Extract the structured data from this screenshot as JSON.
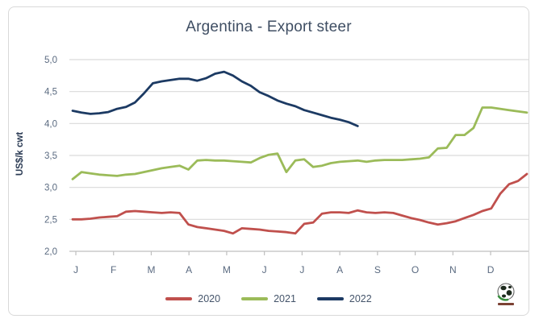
{
  "window": {
    "background": "#ffffff",
    "frame_border_color": "#d9d9d9"
  },
  "chart_data": {
    "type": "line",
    "title": "Argentina - Export steer",
    "xlabel": "",
    "ylabel": "US$/k cwt",
    "ylim": [
      2.0,
      5.0
    ],
    "ytick_step": 0.5,
    "ytick_labels": [
      "2,0",
      "2,5",
      "3,0",
      "3,5",
      "4,0",
      "4,5",
      "5,0"
    ],
    "categories": [
      "J",
      "F",
      "M",
      "A",
      "M",
      "J",
      "J",
      "A",
      "S",
      "O",
      "N",
      "D"
    ],
    "x_unit": "week",
    "weeks_per_year": 52,
    "grid": true,
    "legend_position": "bottom",
    "gridline_color": "#d9d9d9",
    "axis_line_color": "#bfbfbf",
    "tick_label_color": "#5a6a80",
    "series": [
      {
        "name": "2020",
        "color": "#c0504d",
        "values": [
          2.5,
          2.5,
          2.51,
          2.53,
          2.54,
          2.55,
          2.62,
          2.63,
          2.62,
          2.61,
          2.6,
          2.61,
          2.6,
          2.42,
          2.38,
          2.36,
          2.34,
          2.32,
          2.28,
          2.36,
          2.35,
          2.34,
          2.32,
          2.31,
          2.3,
          2.28,
          2.43,
          2.45,
          2.59,
          2.61,
          2.61,
          2.6,
          2.64,
          2.61,
          2.6,
          2.61,
          2.6,
          2.56,
          2.52,
          2.49,
          2.45,
          2.42,
          2.44,
          2.47,
          2.52,
          2.57,
          2.63,
          2.67,
          2.9,
          3.05,
          3.1,
          3.21
        ]
      },
      {
        "name": "2021",
        "color": "#9bbb59",
        "values": [
          3.13,
          3.24,
          3.22,
          3.2,
          3.19,
          3.18,
          3.2,
          3.21,
          3.24,
          3.27,
          3.3,
          3.32,
          3.34,
          3.28,
          3.42,
          3.43,
          3.42,
          3.42,
          3.41,
          3.4,
          3.39,
          3.46,
          3.51,
          3.53,
          3.24,
          3.42,
          3.44,
          3.32,
          3.34,
          3.38,
          3.4,
          3.41,
          3.42,
          3.4,
          3.42,
          3.43,
          3.43,
          3.43,
          3.44,
          3.45,
          3.47,
          3.61,
          3.62,
          3.82,
          3.82,
          3.93,
          4.25,
          4.25,
          4.23,
          4.21,
          4.19,
          4.17
        ]
      },
      {
        "name": "2022",
        "color": "#1c3a63",
        "values": [
          4.2,
          4.17,
          4.15,
          4.16,
          4.18,
          4.23,
          4.26,
          4.33,
          4.47,
          4.63,
          4.66,
          4.68,
          4.7,
          4.7,
          4.67,
          4.71,
          4.78,
          4.81,
          4.75,
          4.66,
          4.59,
          4.49,
          4.43,
          4.36,
          4.31,
          4.27,
          4.21,
          4.17,
          4.13,
          4.09,
          4.06,
          4.02,
          3.96
        ]
      }
    ]
  },
  "title_color": "#3f4e63",
  "ylabel_color": "#2c3c55",
  "legend_text_color": "#44546a",
  "logo": {
    "icon": "globe-logo",
    "globe_land_color": "#1e2b1e",
    "globe_arc_color": "#3a8f3f",
    "caption_bar_color": "#7b4134"
  }
}
